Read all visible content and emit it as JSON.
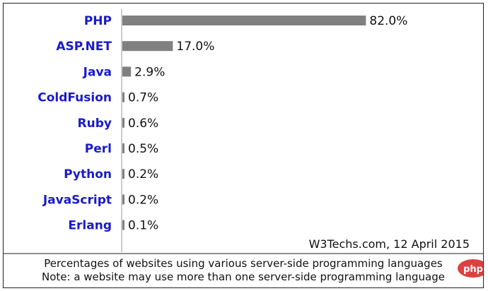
{
  "chart_data": {
    "type": "bar",
    "orientation": "horizontal",
    "categories": [
      "PHP",
      "ASP.NET",
      "Java",
      "ColdFusion",
      "Ruby",
      "Perl",
      "Python",
      "JavaScript",
      "Erlang"
    ],
    "values": [
      82.0,
      17.0,
      2.9,
      0.7,
      0.6,
      0.5,
      0.2,
      0.2,
      0.1
    ],
    "value_labels": [
      "82.0%",
      "17.0%",
      "2.9%",
      "0.7%",
      "0.6%",
      "0.5%",
      "0.2%",
      "0.2%",
      "0.1%"
    ],
    "xlim": [
      0,
      100
    ],
    "grid": false,
    "legend": "none",
    "colors": {
      "bar": "#808080",
      "category_text": "#1a1acc",
      "value_text": "#111111",
      "frame": "#222222",
      "axis": "#999999",
      "watermark_badge": "#d92b2b"
    }
  },
  "source": "W3Techs.com, 12 April 2015",
  "caption": {
    "line1": "Percentages of websites using various server-side programming languages",
    "line2": "Note: a website may use more than one server-side programming language"
  },
  "watermark": "php"
}
